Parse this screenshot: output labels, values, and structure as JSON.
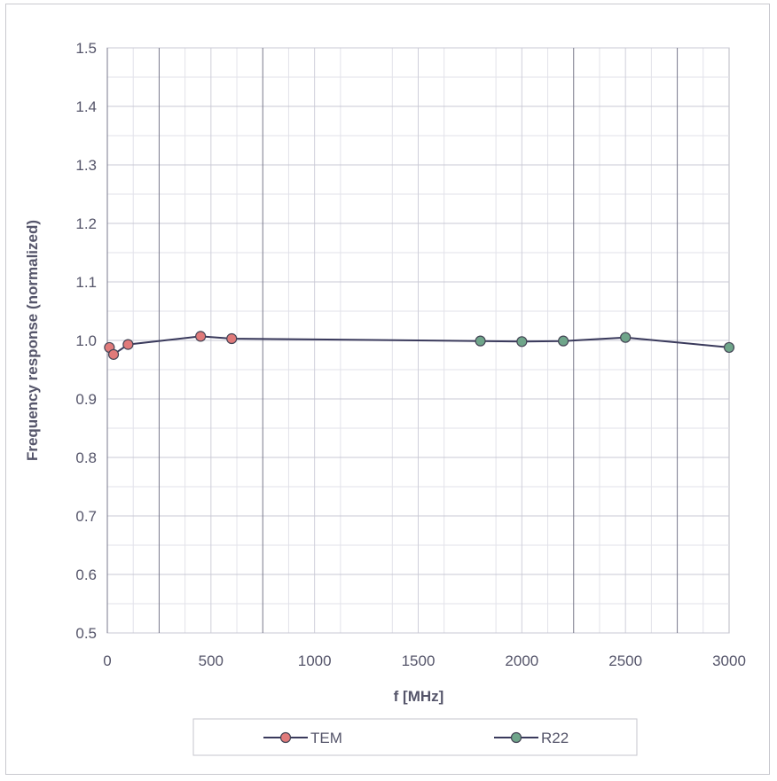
{
  "chart_data": {
    "type": "line",
    "xlabel": "f [MHz]",
    "ylabel": "Frequency response (normalized)",
    "xlim": [
      0,
      3000
    ],
    "ylim": [
      0.5,
      1.5
    ],
    "x_ticks": [
      0,
      500,
      1000,
      1500,
      2000,
      2500,
      3000
    ],
    "y_ticks": [
      0.5,
      0.6,
      0.7,
      0.8,
      0.9,
      1.0,
      1.1,
      1.2,
      1.3,
      1.4,
      1.5
    ],
    "x_tick_labels": [
      "0",
      "500",
      "1000",
      "1500",
      "2000",
      "2500",
      "3000"
    ],
    "y_tick_labels": [
      "0.5",
      "0.6",
      "0.7",
      "0.8",
      "0.9",
      "1.0",
      "1.1",
      "1.2",
      "1.3",
      "1.4",
      "1.5"
    ],
    "x_major_gridlines": [
      250,
      750,
      2250,
      2750
    ],
    "grid": true,
    "legend": "bottom",
    "line_color": "#3a3a5c",
    "series": [
      {
        "name": "TEM",
        "color": "#e07a7a",
        "x": [
          10,
          30,
          100,
          450,
          600
        ],
        "y": [
          0.988,
          0.976,
          0.993,
          1.007,
          1.003
        ]
      },
      {
        "name": "R22",
        "color": "#6fa58a",
        "x": [
          1800,
          2000,
          2200,
          2500,
          3000
        ],
        "y": [
          0.999,
          0.998,
          0.999,
          1.005,
          0.988
        ]
      }
    ]
  }
}
